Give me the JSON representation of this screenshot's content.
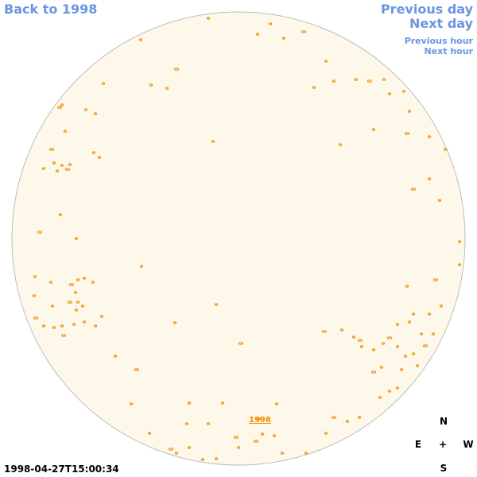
{
  "nav": {
    "back": "Back to 1998",
    "previous_day": "Previous day",
    "next_day": "Next day",
    "previous_hour": "Previous hour",
    "next_hour": "Next hour"
  },
  "disk_label": "1998",
  "timestamp": "1998-04-27T15:00:34",
  "compass": {
    "north": "N",
    "east": "E",
    "center": "+",
    "west": "W",
    "south": "S"
  }
}
